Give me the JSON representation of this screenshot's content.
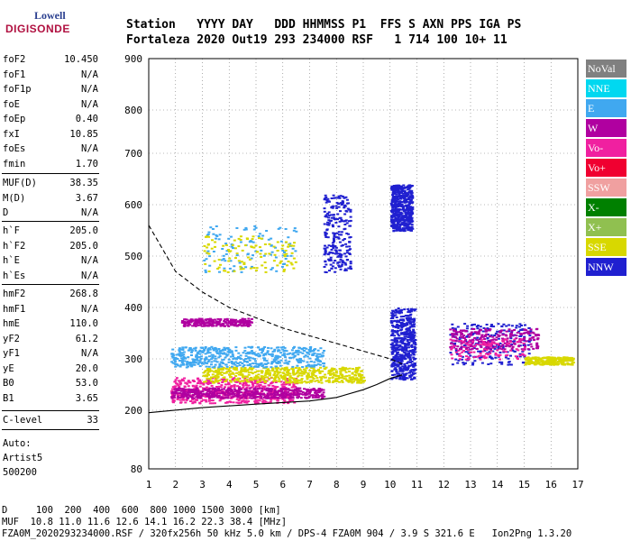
{
  "logo": {
    "top": "Lowell",
    "main": "DIGISONDE"
  },
  "header": {
    "row1": "Station   YYYY DAY   DDD HHMMSS P1  FFS S AXN PPS IGA PS",
    "row2": "Fortaleza 2020 Out19 293 234000 RSF   1 714 100 10+ 11"
  },
  "params_group1": [
    {
      "k": "foF2",
      "v": "10.450"
    },
    {
      "k": "foF1",
      "v": "N/A"
    },
    {
      "k": "foF1p",
      "v": "N/A"
    },
    {
      "k": "foE",
      "v": "N/A"
    },
    {
      "k": "foEp",
      "v": "0.40"
    },
    {
      "k": "fxI",
      "v": "10.85"
    },
    {
      "k": "foEs",
      "v": "N/A"
    },
    {
      "k": "fmin",
      "v": "1.70"
    }
  ],
  "params_group2": [
    {
      "k": "MUF(D)",
      "v": "38.35"
    },
    {
      "k": "M(D)",
      "v": "3.67"
    },
    {
      "k": "D",
      "v": "N/A"
    }
  ],
  "params_group3": [
    {
      "k": "h`F",
      "v": "205.0"
    },
    {
      "k": "h`F2",
      "v": "205.0"
    },
    {
      "k": "h`E",
      "v": "N/A"
    },
    {
      "k": "h`Es",
      "v": "N/A"
    }
  ],
  "params_group4": [
    {
      "k": "hmF2",
      "v": "268.8"
    },
    {
      "k": "hmF1",
      "v": "N/A"
    },
    {
      "k": "hmE",
      "v": "110.0"
    },
    {
      "k": "yF2",
      "v": "61.2"
    },
    {
      "k": "yF1",
      "v": "N/A"
    },
    {
      "k": "yE",
      "v": "20.0"
    },
    {
      "k": "B0",
      "v": "53.0"
    },
    {
      "k": "B1",
      "v": "3.65"
    }
  ],
  "params_group5": [
    {
      "k": "C-level",
      "v": "33"
    }
  ],
  "auto": {
    "line1": "Auto:",
    "line2": "Artist5",
    "line3": "500200"
  },
  "legend": [
    {
      "label": "NoVal",
      "color": "#808080"
    },
    {
      "label": "NNE",
      "color": "#00d8f0"
    },
    {
      "label": "E",
      "color": "#40a8f0"
    },
    {
      "label": "W",
      "color": "#b000a0"
    },
    {
      "label": "Vo-",
      "color": "#f020a0"
    },
    {
      "label": "Vo+",
      "color": "#f00030"
    },
    {
      "label": "SSW",
      "color": "#f0a0a0"
    },
    {
      "label": "X-",
      "color": "#008000"
    },
    {
      "label": "X+",
      "color": "#90c050"
    },
    {
      "label": "SSE",
      "color": "#d8d800"
    },
    {
      "label": "NNW",
      "color": "#2020d0"
    }
  ],
  "footer": {
    "line1": "D     100  200  400  600  800 1000 1500 3000 [km]",
    "line2": "MUF  10.8 11.0 11.6 12.6 14.1 16.2 22.3 38.4 [MHz]",
    "line3": "FZA0M_2020293234000.RSF / 320fx256h 50 kHz 5.0 km / DPS-4 FZA0M 904 / 3.9 S 321.6 E   Ion2Png 1.3.20"
  },
  "chart_data": {
    "type": "scatter",
    "xlim": [
      1,
      17
    ],
    "ylim": [
      80,
      900
    ],
    "x_ticks": [
      "1",
      "2",
      "3",
      "4",
      "5",
      "6",
      "7",
      "8",
      "9",
      "10",
      "11",
      "12",
      "13",
      "14",
      "15",
      "16",
      "17"
    ],
    "y_ticks": [
      "80",
      "200",
      "300",
      "400",
      "500",
      "600",
      "700",
      "800",
      "900"
    ],
    "y_tick_values": [
      80,
      200,
      300,
      400,
      500,
      600,
      700,
      800,
      900
    ],
    "grid": true,
    "clusters": [
      {
        "color": "#f020a0",
        "x": [
          1.8,
          6.5
        ],
        "y": [
          215,
          265
        ],
        "density": "high"
      },
      {
        "color": "#b000a0",
        "x": [
          1.8,
          7.5
        ],
        "y": [
          225,
          245
        ],
        "density": "high"
      },
      {
        "color": "#d8d800",
        "x": [
          3.0,
          9.0
        ],
        "y": [
          255,
          285
        ],
        "density": "high"
      },
      {
        "color": "#40a8f0",
        "x": [
          1.8,
          7.5
        ],
        "y": [
          285,
          325
        ],
        "density": "high"
      },
      {
        "color": "#b000a0",
        "x": [
          2.2,
          4.8
        ],
        "y": [
          365,
          380
        ],
        "density": "medium"
      },
      {
        "color": "#40a8f0",
        "x": [
          3.0,
          6.5
        ],
        "y": [
          470,
          560
        ],
        "density": "low"
      },
      {
        "color": "#d8d800",
        "x": [
          3.0,
          6.5
        ],
        "y": [
          470,
          540
        ],
        "density": "low"
      },
      {
        "color": "#2020d0",
        "x": [
          7.5,
          8.5
        ],
        "y": [
          470,
          620
        ],
        "density": "medium"
      },
      {
        "color": "#2020d0",
        "x": [
          10.0,
          10.8
        ],
        "y": [
          550,
          640
        ],
        "density": "high"
      },
      {
        "color": "#2020d0",
        "x": [
          10.0,
          10.9
        ],
        "y": [
          260,
          400
        ],
        "density": "high"
      },
      {
        "color": "#2020d0",
        "x": [
          12.2,
          15.2
        ],
        "y": [
          290,
          370
        ],
        "density": "medium"
      },
      {
        "color": "#b000a0",
        "x": [
          12.2,
          15.5
        ],
        "y": [
          320,
          360
        ],
        "density": "medium"
      },
      {
        "color": "#f020a0",
        "x": [
          12.2,
          15.0
        ],
        "y": [
          300,
          340
        ],
        "density": "low"
      },
      {
        "color": "#d8d800",
        "x": [
          15.0,
          16.8
        ],
        "y": [
          290,
          305
        ],
        "density": "medium"
      }
    ],
    "profile_curve": {
      "x": [
        1.0,
        3.0,
        5.0,
        7.0,
        8.0,
        9.0,
        9.5,
        10.0,
        10.45
      ],
      "y": [
        195,
        205,
        212,
        218,
        225,
        240,
        250,
        262,
        268.8
      ]
    },
    "profile_dashed": {
      "x": [
        1.0,
        2.0,
        3.0,
        4.0,
        5.0,
        6.0,
        7.0,
        8.0,
        9.0,
        10.0,
        10.45
      ],
      "y": [
        560,
        470,
        430,
        400,
        380,
        360,
        345,
        330,
        315,
        300,
        290
      ]
    }
  }
}
